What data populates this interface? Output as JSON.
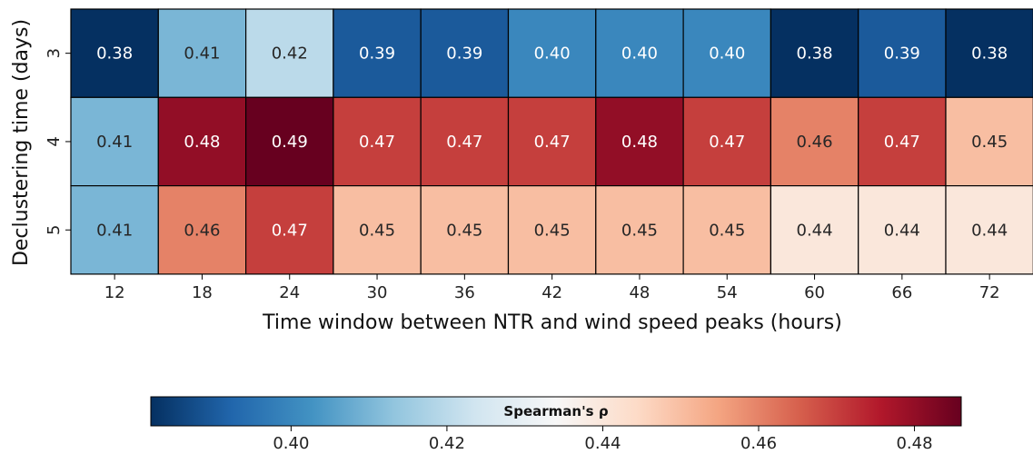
{
  "chart_data": {
    "type": "heatmap",
    "xlabel": "Time window between NTR and wind speed peaks (hours)",
    "ylabel": "Declustering time (days)",
    "x_categories": [
      "12",
      "18",
      "24",
      "30",
      "36",
      "42",
      "48",
      "54",
      "60",
      "66",
      "72"
    ],
    "y_categories": [
      "3",
      "4",
      "5"
    ],
    "values": [
      [
        0.38,
        0.41,
        0.42,
        0.39,
        0.39,
        0.4,
        0.4,
        0.4,
        0.38,
        0.39,
        0.38
      ],
      [
        0.41,
        0.48,
        0.49,
        0.47,
        0.47,
        0.47,
        0.48,
        0.47,
        0.46,
        0.47,
        0.45
      ],
      [
        0.41,
        0.46,
        0.47,
        0.45,
        0.45,
        0.45,
        0.45,
        0.45,
        0.44,
        0.44,
        0.44
      ]
    ],
    "cell_labels": [
      [
        "0.38",
        "0.41",
        "0.42",
        "0.39",
        "0.39",
        "0.40",
        "0.40",
        "0.40",
        "0.38",
        "0.39",
        "0.38"
      ],
      [
        "0.41",
        "0.48",
        "0.49",
        "0.47",
        "0.47",
        "0.47",
        "0.48",
        "0.47",
        "0.46",
        "0.47",
        "0.45"
      ],
      [
        "0.41",
        "0.46",
        "0.47",
        "0.45",
        "0.45",
        "0.45",
        "0.45",
        "0.45",
        "0.44",
        "0.44",
        "0.44"
      ]
    ],
    "colormap": "RdBu_r",
    "colorbar": {
      "label": "Spearman's ρ",
      "range": [
        0.382,
        0.486
      ],
      "ticks": [
        0.4,
        0.42,
        0.44,
        0.46,
        0.48
      ],
      "tick_labels": [
        "0.40",
        "0.42",
        "0.44",
        "0.46",
        "0.48"
      ],
      "orientation": "horizontal",
      "placement": "bottom"
    },
    "colors": {
      "dark_blue": "#053061",
      "blue": "#2166ac",
      "mid_blue": "#4393c3",
      "light_blue": "#92c5de",
      "pale_blue": "#d1e5f0",
      "white": "#f7f7f7",
      "pale_red": "#fddbc7",
      "light_red": "#f4a582",
      "mid_red": "#d6604d",
      "red": "#b2182b",
      "dark_red": "#67001f"
    }
  }
}
